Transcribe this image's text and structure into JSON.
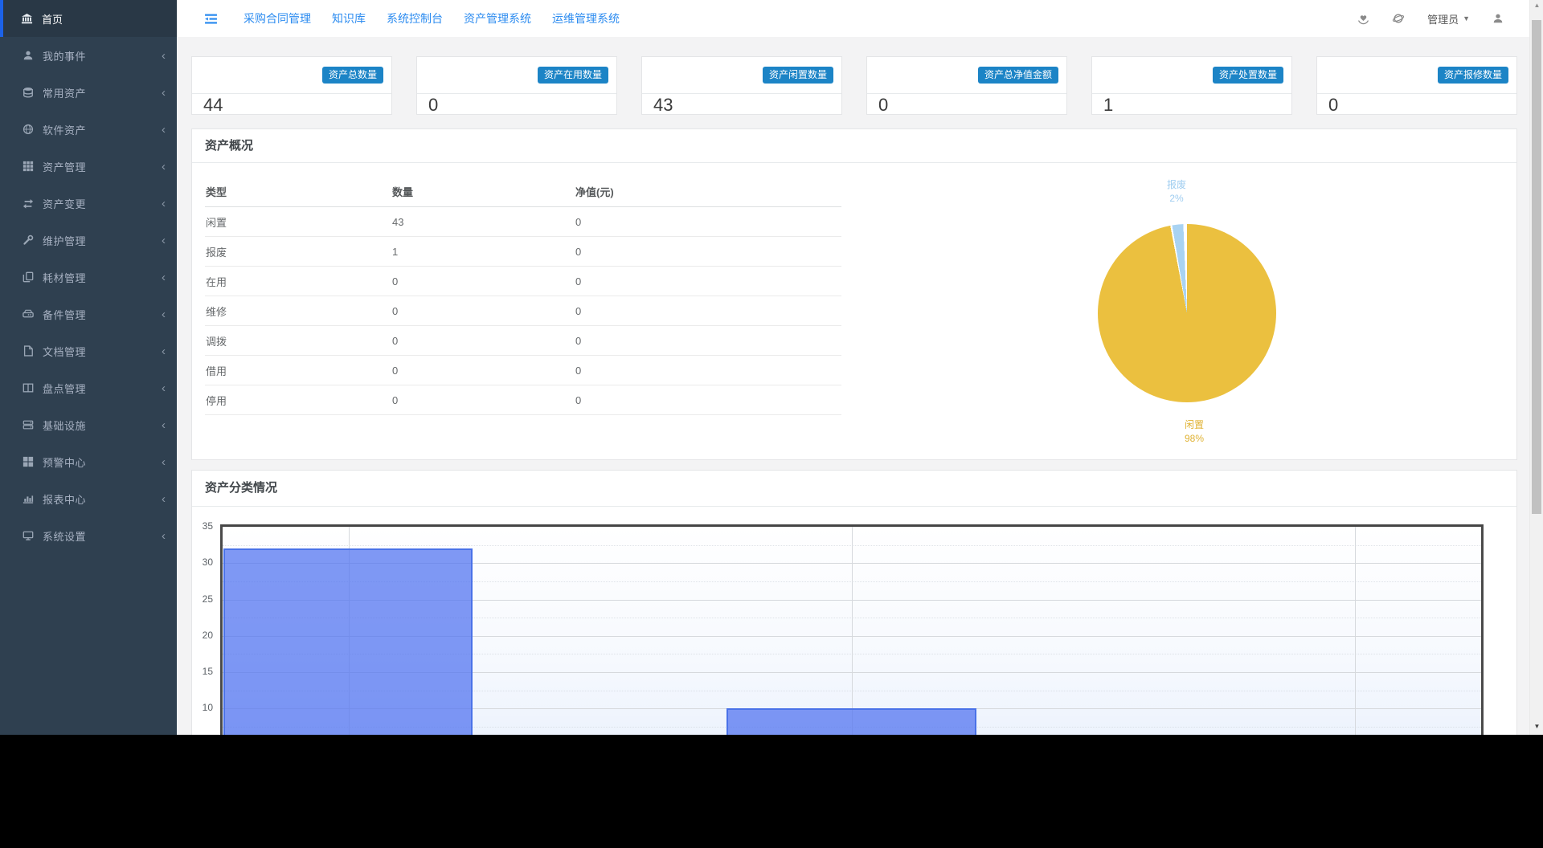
{
  "navbar": {
    "menu": [
      {
        "label": "采购合同管理"
      },
      {
        "label": "知识库"
      },
      {
        "label": "系统控制台"
      },
      {
        "label": "资产管理系统"
      },
      {
        "label": "运维管理系统"
      }
    ],
    "admin_label": "管理员",
    "link_color": "#2d8cf0"
  },
  "sidebar": {
    "active": {
      "label": "首页",
      "icon": "bank-icon"
    },
    "items": [
      {
        "label": "我的事件",
        "icon": "user-icon"
      },
      {
        "label": "常用资产",
        "icon": "database-icon"
      },
      {
        "label": "软件资产",
        "icon": "globe-icon"
      },
      {
        "label": "资产管理",
        "icon": "grid-icon"
      },
      {
        "label": "资产变更",
        "icon": "exchange-icon"
      },
      {
        "label": "维护管理",
        "icon": "wrench-icon"
      },
      {
        "label": "耗材管理",
        "icon": "copy-icon"
      },
      {
        "label": "备件管理",
        "icon": "hdd-icon"
      },
      {
        "label": "文档管理",
        "icon": "file-icon"
      },
      {
        "label": "盘点管理",
        "icon": "columns-icon"
      },
      {
        "label": "基础设施",
        "icon": "server-icon"
      },
      {
        "label": "预警中心",
        "icon": "th-large-icon"
      },
      {
        "label": "报表中心",
        "icon": "bar-chart-icon"
      },
      {
        "label": "系统设置",
        "icon": "desktop-icon"
      }
    ],
    "bg_color": "#2f4050",
    "active_border_color": "#1c62e8"
  },
  "stat_cards": [
    {
      "label": "资产总数量",
      "value": "44"
    },
    {
      "label": "资产在用数量",
      "value": "0"
    },
    {
      "label": "资产闲置数量",
      "value": "43"
    },
    {
      "label": "资产总净值金额",
      "value": "0"
    },
    {
      "label": "资产处置数量",
      "value": "1"
    },
    {
      "label": "资产报修数量",
      "value": "0"
    }
  ],
  "badge_color": "#1c84c6",
  "overview": {
    "title": "资产概况",
    "table": {
      "headers": [
        "类型",
        "数量",
        "净值(元)"
      ],
      "rows": [
        [
          "闲置",
          "43",
          "0"
        ],
        [
          "报废",
          "1",
          "0"
        ],
        [
          "在用",
          "0",
          "0"
        ],
        [
          "维修",
          "0",
          "0"
        ],
        [
          "调拨",
          "0",
          "0"
        ],
        [
          "借用",
          "0",
          "0"
        ],
        [
          "停用",
          "0",
          "0"
        ]
      ]
    }
  },
  "classification": {
    "title": "资产分类情况"
  },
  "chart_data": [
    {
      "type": "pie",
      "title": "资产概况",
      "labels": [
        "闲置",
        "报废"
      ],
      "values": [
        98,
        2
      ],
      "unit": "%",
      "colors": [
        "#ebc03f",
        "#a9d3f2"
      ],
      "label_position": "outside-top-bottom",
      "legend": "none",
      "annotations": [
        {
          "text_line1": "报废",
          "text_line2": "2%",
          "position": "top"
        },
        {
          "text_line1": "闲置",
          "text_line2": "98%",
          "position": "bottom"
        }
      ]
    },
    {
      "type": "bar",
      "title": "资产分类情况",
      "ylim": [
        0,
        35
      ],
      "yticks": [
        35,
        30,
        25,
        20,
        15,
        10
      ],
      "num_slots": 5,
      "bars": [
        {
          "slot": 0,
          "value": 32
        },
        {
          "slot": 2,
          "value": 10
        }
      ],
      "bar_color": "#7195f7",
      "bar_border_color": "#4a72e8",
      "grid": true,
      "x_axis_labels_visible": false,
      "bottom_cut_off": true
    }
  ]
}
